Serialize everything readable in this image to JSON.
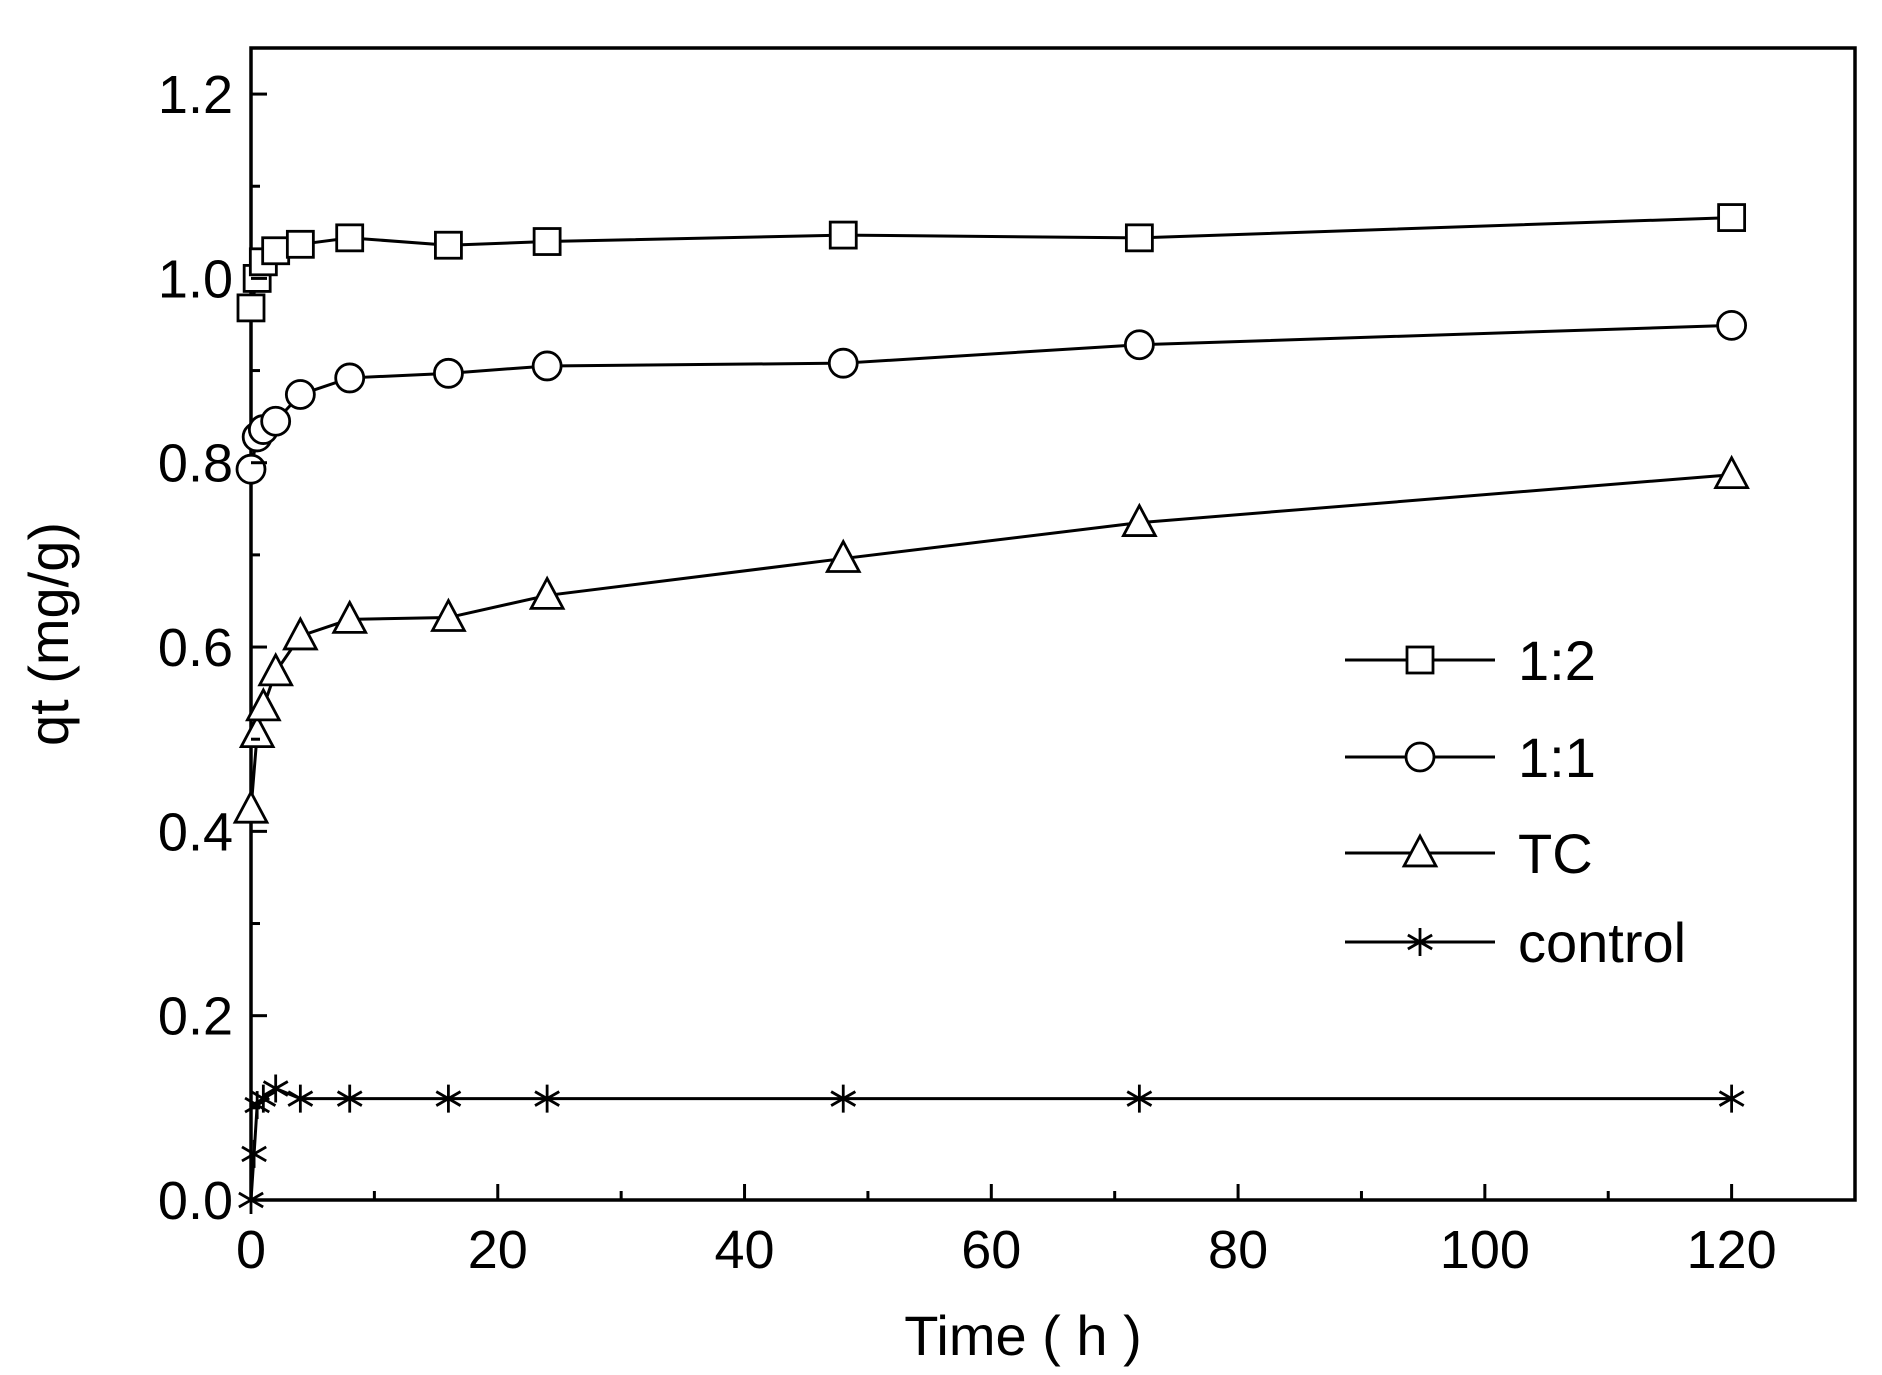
{
  "chart_data": {
    "type": "line",
    "title": "",
    "xlabel": "Time ( h )",
    "ylabel": "qt (mg/g)",
    "xlim": [
      0,
      130
    ],
    "ylim": [
      0,
      1.25
    ],
    "xticks": [
      0,
      20,
      40,
      60,
      80,
      100,
      120
    ],
    "xtick_labels": [
      "0",
      "20",
      "40",
      "60",
      "80",
      "100",
      "120"
    ],
    "yticks": [
      0.0,
      0.2,
      0.4,
      0.6,
      0.8,
      1.0,
      1.2
    ],
    "ytick_labels": [
      "0.0",
      "0.2",
      "0.4",
      "0.6",
      "0.8",
      "1.0",
      "1.2"
    ],
    "legend_position": "right",
    "series": [
      {
        "name": "1:2",
        "marker": "square",
        "x": [
          0,
          0.5,
          1,
          2,
          4,
          8,
          16,
          24,
          48,
          72,
          120
        ],
        "y": [
          0.968,
          1.0,
          1.018,
          1.03,
          1.037,
          1.044,
          1.036,
          1.04,
          1.047,
          1.044,
          1.066
        ]
      },
      {
        "name": "1:1",
        "marker": "circle",
        "x": [
          0,
          0.5,
          1,
          2,
          4,
          8,
          16,
          24,
          48,
          72,
          120
        ],
        "y": [
          0.793,
          0.828,
          0.836,
          0.845,
          0.874,
          0.892,
          0.897,
          0.905,
          0.908,
          0.928,
          0.949
        ]
      },
      {
        "name": "TC",
        "marker": "triangle",
        "x": [
          0,
          0.5,
          1,
          2,
          4,
          8,
          16,
          24,
          48,
          72,
          120
        ],
        "y": [
          0.424,
          0.506,
          0.535,
          0.573,
          0.612,
          0.63,
          0.632,
          0.656,
          0.696,
          0.735,
          0.787
        ]
      },
      {
        "name": "control",
        "marker": "asterisk",
        "x": [
          0,
          0.25,
          0.5,
          1,
          2,
          4,
          8,
          16,
          24,
          48,
          72,
          120
        ],
        "y": [
          0.0,
          0.05,
          0.103,
          0.11,
          0.121,
          0.11,
          0.11,
          0.11,
          0.11,
          0.11,
          0.11,
          0.11
        ]
      }
    ]
  }
}
